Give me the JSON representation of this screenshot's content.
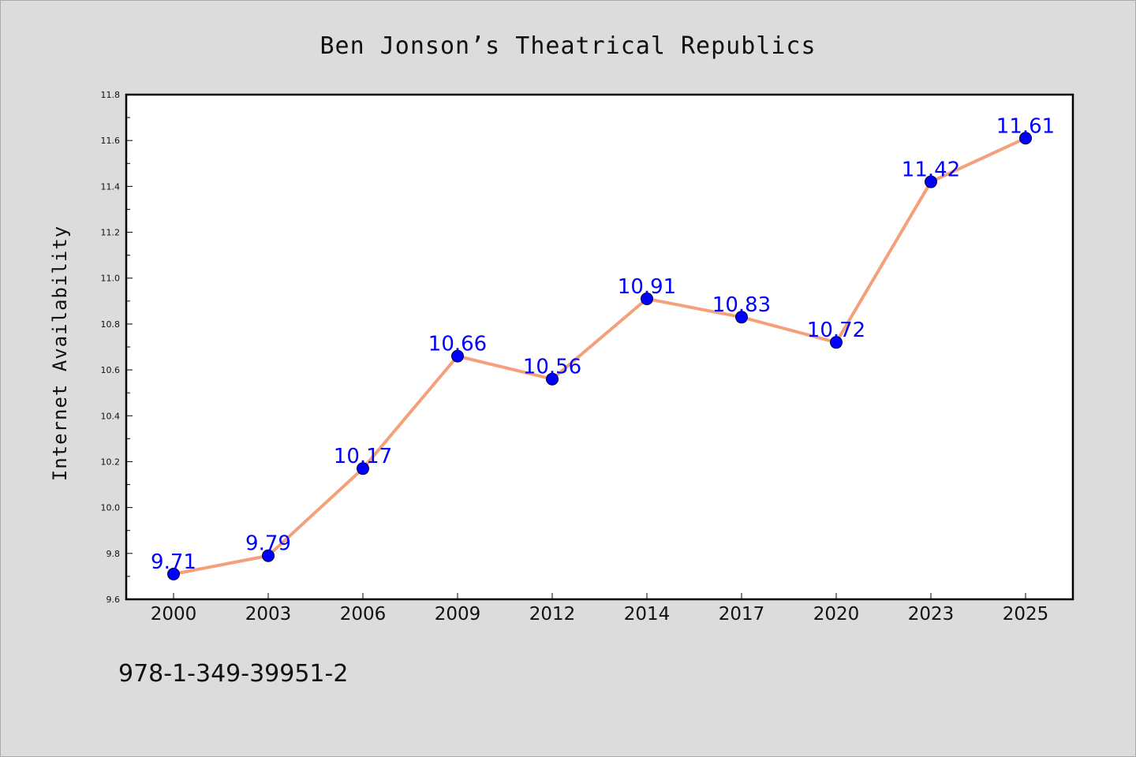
{
  "chart_data": {
    "type": "line",
    "title": "Ben Jonson’s Theatrical Republics",
    "xlabel": "",
    "ylabel": "Internet Availability",
    "categories": [
      "2000",
      "2003",
      "2006",
      "2009",
      "2012",
      "2014",
      "2017",
      "2020",
      "2023",
      "2025"
    ],
    "series": [
      {
        "values": [
          9.71,
          9.79,
          10.17,
          10.66,
          10.56,
          10.91,
          10.83,
          10.72,
          11.42,
          11.61
        ],
        "data_labels": [
          "9.71",
          "9.79",
          "10.17",
          "10.66",
          "10.56",
          "10.91",
          "10.83",
          "10.72",
          "11.42",
          "11.61"
        ],
        "line_color": "#f4a07a",
        "marker_color": "#0000ff"
      }
    ],
    "ylim": [
      9.6,
      11.8
    ],
    "y_ticks": [
      "9.6",
      "9.8",
      "10.0",
      "10.2",
      "10.4",
      "10.6",
      "10.8",
      "11.0",
      "11.2",
      "11.4",
      "11.6",
      "11.8"
    ],
    "grid": false,
    "legend": "none"
  },
  "footer": {
    "isbn": "978-1-349-39951-2"
  },
  "colors": {
    "background": "#dcdcdc",
    "plot_background": "#ffffff",
    "line": "#f4a07a",
    "marker": "#0000ff",
    "label": "#0000ff"
  }
}
